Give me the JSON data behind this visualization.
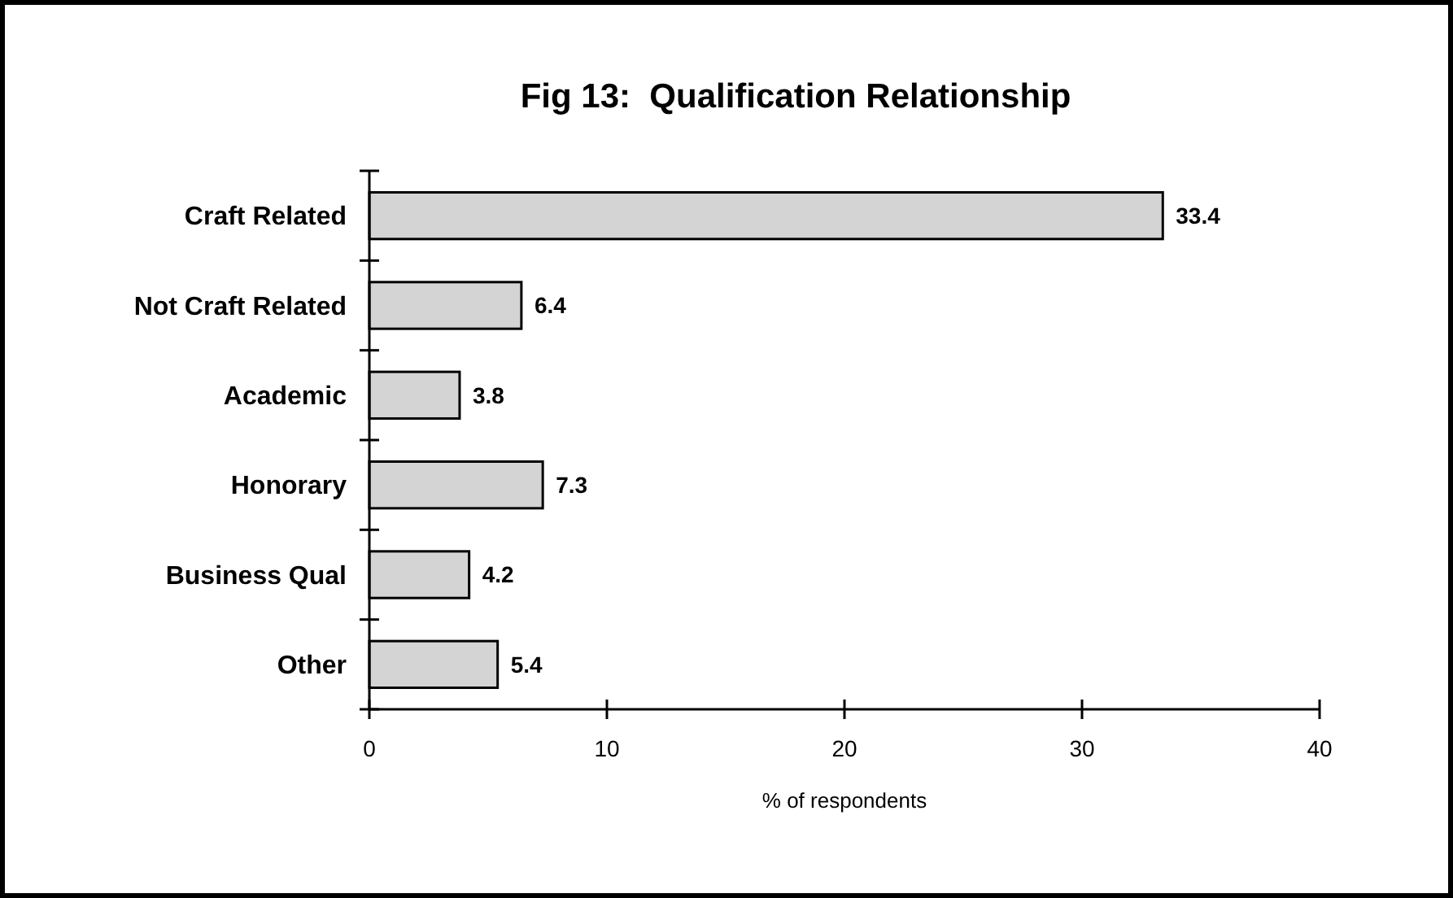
{
  "chart_data": {
    "type": "bar",
    "orientation": "horizontal",
    "title": "Fig 13:  Qualification Relationship",
    "xlabel": "% of respondents",
    "categories": [
      "Craft Related",
      "Not Craft Related",
      "Academic",
      "Honorary",
      "Business Qual",
      "Other"
    ],
    "values": [
      33.4,
      6.4,
      3.8,
      7.3,
      4.2,
      5.4
    ],
    "color": "#d4d4d4",
    "data_labels": true,
    "xlim": [
      0,
      40
    ],
    "xticks": [
      0,
      10,
      20,
      30,
      40
    ],
    "grid": false
  }
}
